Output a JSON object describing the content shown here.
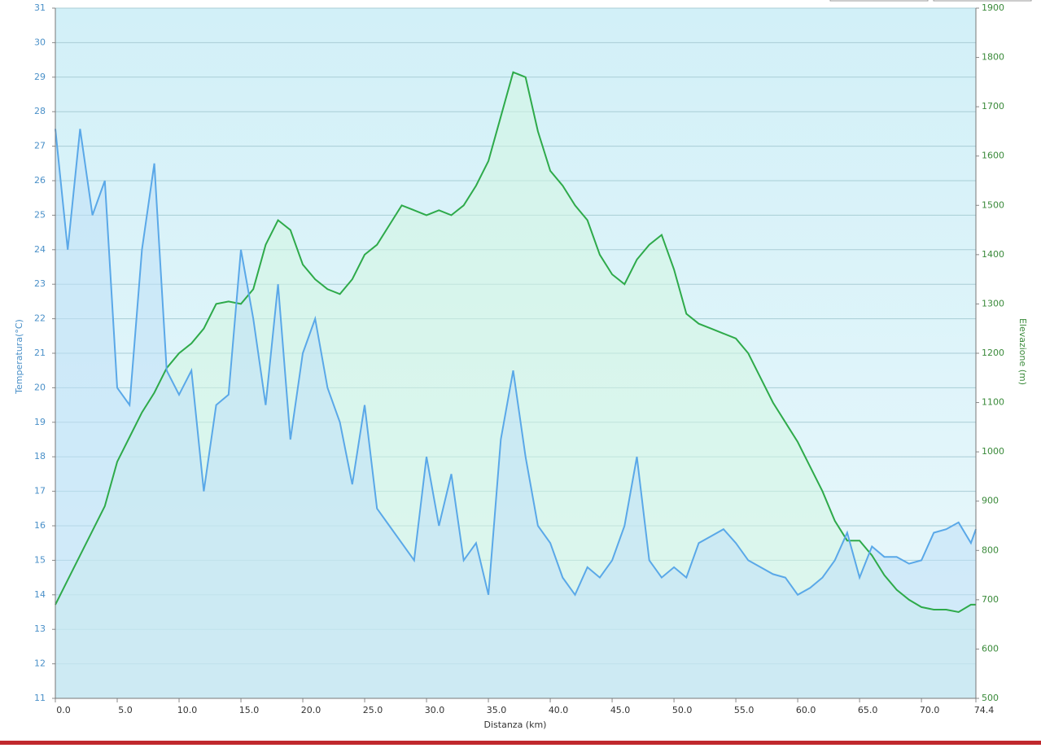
{
  "chart_data": {
    "type": "line",
    "x_label": "Distanza  (km)",
    "y_label": "Temperatura(°C)",
    "y2_label": "Elevazione (m)",
    "x": [
      0,
      1,
      2,
      3,
      4,
      5,
      6,
      7,
      8,
      9,
      10,
      11,
      12,
      13,
      14,
      15,
      16,
      17,
      18,
      19,
      20,
      21,
      22,
      23,
      24,
      25,
      26,
      27,
      28,
      29,
      30,
      31,
      32,
      33,
      34,
      35,
      36,
      37,
      38,
      39,
      40,
      41,
      42,
      43,
      44,
      45,
      46,
      47,
      48,
      49,
      50,
      51,
      52,
      53,
      54,
      55,
      56,
      57,
      58,
      59,
      60,
      61,
      62,
      63,
      64,
      65,
      66,
      67,
      68,
      69,
      70,
      71,
      72,
      73,
      74,
      74.4
    ],
    "series": [
      {
        "name": "Temperatura",
        "color": "#5aa8e8",
        "fill": "#bfe0f7",
        "values": [
          27.5,
          24,
          27.5,
          25,
          26,
          20,
          19.5,
          24,
          26.5,
          20.5,
          19.8,
          20.5,
          17,
          19.5,
          19.8,
          24,
          22,
          19.5,
          23,
          18.5,
          21,
          22,
          20,
          19,
          17.2,
          19.5,
          16.5,
          16,
          15.5,
          15,
          18,
          16,
          17.5,
          15,
          15.5,
          14,
          18.5,
          20.5,
          18,
          16,
          15.5,
          14.5,
          14,
          14.8,
          14.5,
          15,
          16,
          18,
          15,
          14.5,
          14.8,
          14.5,
          15.5,
          15.7,
          15.9,
          15.5,
          15,
          14.8,
          14.6,
          14.5,
          14,
          14.2,
          14.5,
          15,
          15.8,
          14.5,
          15.4,
          15.1,
          15.1,
          14.9,
          15,
          15.8,
          15.9,
          16.1,
          15.5,
          15.9
        ]
      },
      {
        "name": "Elevazione",
        "color": "#2eaa4a",
        "fill": "#d4f5e2",
        "axis": "y2",
        "values": [
          690,
          740,
          790,
          840,
          890,
          980,
          1030,
          1080,
          1120,
          1170,
          1200,
          1220,
          1250,
          1300,
          1305,
          1300,
          1330,
          1420,
          1470,
          1450,
          1380,
          1350,
          1330,
          1320,
          1350,
          1400,
          1420,
          1460,
          1500,
          1490,
          1480,
          1490,
          1480,
          1500,
          1540,
          1590,
          1680,
          1770,
          1760,
          1650,
          1570,
          1540,
          1500,
          1470,
          1400,
          1360,
          1340,
          1390,
          1420,
          1440,
          1370,
          1280,
          1260,
          1250,
          1240,
          1230,
          1200,
          1150,
          1100,
          1060,
          1020,
          970,
          920,
          860,
          820,
          820,
          790,
          750,
          720,
          700,
          685,
          680,
          680,
          675,
          690,
          690
        ]
      }
    ],
    "xlim": [
      0,
      74.4
    ],
    "xticks": [
      {
        "value": 0,
        "label": "0.0"
      },
      {
        "value": 5,
        "label": "5.0"
      },
      {
        "value": 10,
        "label": "10.0"
      },
      {
        "value": 15,
        "label": "15.0"
      },
      {
        "value": 20,
        "label": "20.0"
      },
      {
        "value": 25,
        "label": "25.0"
      },
      {
        "value": 30,
        "label": "30.0"
      },
      {
        "value": 35,
        "label": "35.0"
      },
      {
        "value": 40,
        "label": "40.0"
      },
      {
        "value": 45,
        "label": "45.0"
      },
      {
        "value": 50,
        "label": "50.0"
      },
      {
        "value": 55,
        "label": "55.0"
      },
      {
        "value": 60,
        "label": "60.0"
      },
      {
        "value": 65,
        "label": "65.0"
      },
      {
        "value": 70,
        "label": "70.0"
      },
      74.4
    ],
    "ylim": [
      11,
      31
    ],
    "yticks": [
      11,
      12,
      13,
      14,
      15,
      16,
      17,
      18,
      19,
      20,
      21,
      22,
      23,
      24,
      25,
      26,
      27,
      28,
      29,
      30,
      31
    ],
    "y2lim": [
      500,
      1900
    ],
    "y2ticks": [
      500,
      600,
      700,
      800,
      900,
      1000,
      1100,
      1200,
      1300,
      1400,
      1500,
      1600,
      1700,
      1800,
      1900
    ],
    "grid": true
  }
}
